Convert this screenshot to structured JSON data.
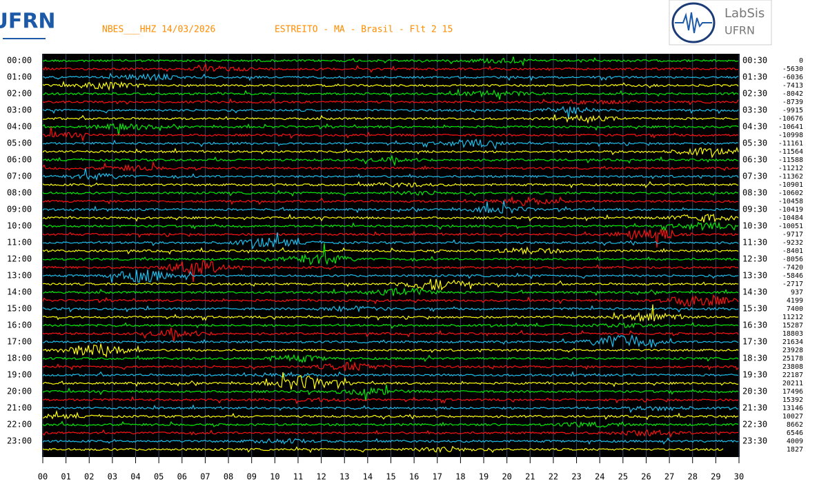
{
  "header": {
    "station": "NBES___HHZ 14/03/2026",
    "location": "ESTREITO - MA - Brasil - Flt 2 15"
  },
  "logos": {
    "left": "UFRN",
    "right_top": "LabSis",
    "right_bottom": "UFRN"
  },
  "left_labels": [
    "00:00",
    "01:00",
    "02:00",
    "03:00",
    "04:00",
    "05:00",
    "06:00",
    "07:00",
    "08:00",
    "09:00",
    "10:00",
    "11:00",
    "12:00",
    "13:00",
    "14:00",
    "15:00",
    "16:00",
    "17:00",
    "18:00",
    "19:00",
    "20:00",
    "21:00",
    "22:00",
    "23:00"
  ],
  "right_labels": [
    "00:30",
    "01:30",
    "02:30",
    "03:30",
    "04:30",
    "05:30",
    "06:30",
    "07:30",
    "08:30",
    "09:30",
    "10:30",
    "11:30",
    "12:30",
    "13:30",
    "14:30",
    "15:30",
    "16:30",
    "17:30",
    "18:30",
    "19:30",
    "20:30",
    "21:30",
    "22:30",
    "23:30"
  ],
  "offsets": [
    0,
    -5630,
    -6036,
    -7413,
    -8042,
    -8739,
    -9915,
    -10676,
    -10641,
    -10998,
    -11161,
    -11564,
    -11588,
    -11212,
    -11362,
    -10901,
    -10602,
    -10458,
    -10419,
    -10484,
    -10051,
    -9717,
    -9232,
    -8401,
    -8056,
    -7420,
    -5846,
    -2717,
    937,
    4199,
    7400,
    11212,
    15287,
    18803,
    21634,
    23928,
    25178,
    23808,
    22187,
    20211,
    17496,
    15392,
    13146,
    10027,
    8662,
    6546,
    4009,
    1827
  ],
  "x_labels": [
    "00",
    "01",
    "02",
    "03",
    "04",
    "05",
    "06",
    "07",
    "08",
    "09",
    "10",
    "11",
    "12",
    "13",
    "14",
    "15",
    "16",
    "17",
    "18",
    "19",
    "20",
    "21",
    "22",
    "23",
    "24",
    "25",
    "26",
    "27",
    "28",
    "29",
    "30"
  ]
}
